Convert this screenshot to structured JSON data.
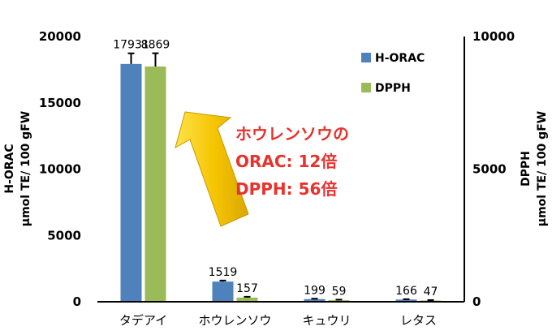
{
  "chart_data": {
    "type": "bar",
    "categories": [
      "タデアイ",
      "ホウレンソウ",
      "キュウリ",
      "レタス"
    ],
    "series": [
      {
        "name": "H-ORAC",
        "axis": "left",
        "color": "#4f81bd",
        "values": [
          17931,
          1519,
          199,
          166
        ],
        "errors": [
          800,
          80,
          30,
          25
        ]
      },
      {
        "name": "DPPH",
        "axis": "right",
        "color": "#9bbb59",
        "values": [
          8869,
          157,
          59,
          47
        ],
        "errors": [
          500,
          30,
          20,
          15
        ]
      }
    ],
    "data_labels": {
      "H-ORAC": [
        "17931",
        "1519",
        "199",
        "166"
      ],
      "DPPH": [
        "8869",
        "157",
        "59",
        "47"
      ]
    },
    "y_left": {
      "label_line1": "H-ORAC",
      "label_line2": "µmol TE/ 100 gFW",
      "ylim": [
        0,
        20000
      ],
      "ticks": [
        "0",
        "5000",
        "10000",
        "15000",
        "20000"
      ]
    },
    "y_right": {
      "label_line1": "DPPH",
      "label_line2": "µmol TE/ 100 gFW",
      "ylim": [
        0,
        10000
      ],
      "ticks": [
        "0",
        "5000",
        "10000"
      ]
    },
    "legend_position": "top-right",
    "annotation": {
      "line1": "ホウレンソウの",
      "line2": "ORAC: 12倍",
      "line3": "DPPH: 56倍",
      "color": "#e8322d",
      "arrow_color": "#f5c400"
    }
  }
}
